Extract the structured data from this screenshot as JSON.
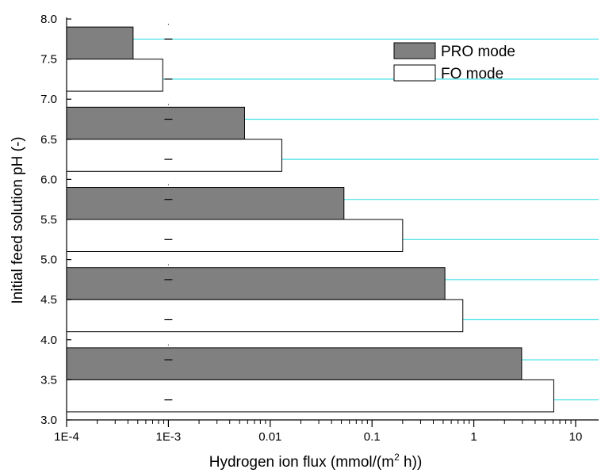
{
  "chart_data": {
    "type": "bar",
    "orientation": "horizontal",
    "x_scale": "log",
    "xlabel_main": "Hydrogen ion flux (mmol/(m",
    "xlabel_sup": "2",
    "xlabel_end": " h))",
    "ylabel": "Initial feed solution pH (-)",
    "xlim": [
      0.0001,
      20
    ],
    "ylim": [
      3.0,
      8.0
    ],
    "x_ticks": [
      {
        "value": 0.0001,
        "label": "1E-4"
      },
      {
        "value": 0.001,
        "label": "1E-3"
      },
      {
        "value": 0.01,
        "label": "0.01"
      },
      {
        "value": 0.1,
        "label": "0.1"
      },
      {
        "value": 1,
        "label": "1"
      },
      {
        "value": 10,
        "label": "10"
      }
    ],
    "y_ticks": [
      {
        "value": 3.0,
        "label": "3.0"
      },
      {
        "value": 3.5,
        "label": "3.5"
      },
      {
        "value": 4.0,
        "label": "4.0"
      },
      {
        "value": 4.5,
        "label": "4.5"
      },
      {
        "value": 5.0,
        "label": "5.0"
      },
      {
        "value": 5.5,
        "label": "5.5"
      },
      {
        "value": 6.0,
        "label": "6.0"
      },
      {
        "value": 6.5,
        "label": "6.5"
      },
      {
        "value": 7.0,
        "label": "7.0"
      },
      {
        "value": 7.5,
        "label": "7.5"
      },
      {
        "value": 8.0,
        "label": "8.0"
      }
    ],
    "grid_lines_y": [
      3.25,
      3.75,
      4.25,
      4.75,
      5.25,
      5.75,
      6.25,
      6.75,
      7.25,
      7.75
    ],
    "grid_color": "#40e0e8",
    "legend_position": "top-right",
    "series": [
      {
        "name": "PRO mode",
        "color": "#808080",
        "bars": [
          {
            "y0": 7.5,
            "y1": 7.9,
            "value": 0.00045
          },
          {
            "y0": 6.5,
            "y1": 6.9,
            "value": 0.0056
          },
          {
            "y0": 5.5,
            "y1": 5.9,
            "value": 0.053
          },
          {
            "y0": 4.5,
            "y1": 4.9,
            "value": 0.52
          },
          {
            "y0": 3.5,
            "y1": 3.9,
            "value": 2.95
          }
        ]
      },
      {
        "name": "FO mode",
        "color": "#ffffff",
        "bars": [
          {
            "y0": 7.1,
            "y1": 7.5,
            "value": 0.00088
          },
          {
            "y0": 6.1,
            "y1": 6.5,
            "value": 0.013
          },
          {
            "y0": 5.1,
            "y1": 5.5,
            "value": 0.2
          },
          {
            "y0": 4.1,
            "y1": 4.5,
            "value": 0.78
          },
          {
            "y0": 3.1,
            "y1": 3.5,
            "value": 6.1
          }
        ]
      }
    ]
  }
}
